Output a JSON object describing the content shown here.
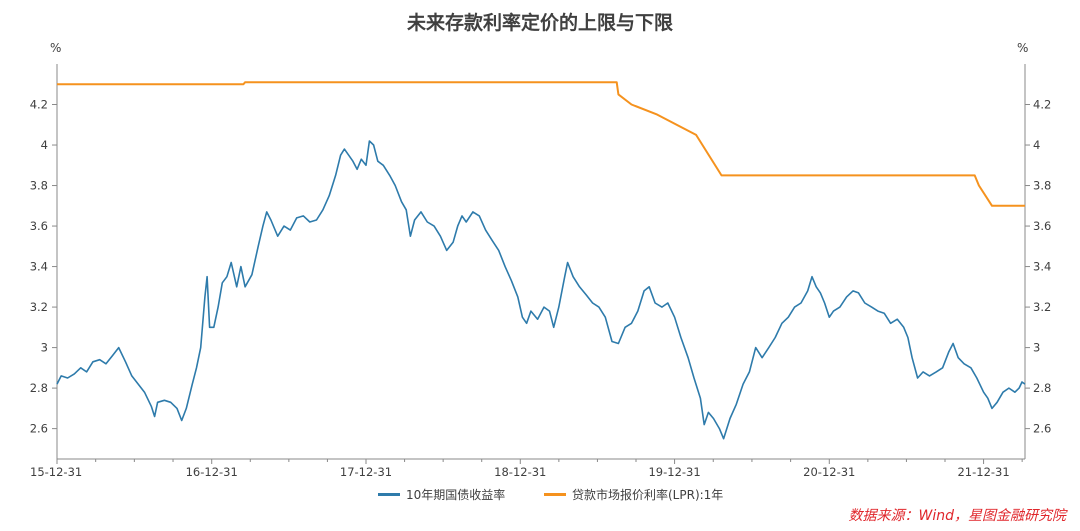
{
  "chart_data": {
    "type": "line",
    "title": "未来存款利率定价的上限与下限",
    "ylabel_left": "%",
    "ylabel_right": "%",
    "ylim": [
      2.45,
      4.4
    ],
    "yticks": [
      "2.6",
      "2.8",
      "3",
      "3.2",
      "3.4",
      "3.6",
      "3.8",
      "4",
      "4.2"
    ],
    "ytick_values": [
      2.6,
      2.8,
      3.0,
      3.2,
      3.4,
      3.6,
      3.8,
      4.0,
      4.2
    ],
    "xlim": [
      "2015-12-31",
      "2022-04-08"
    ],
    "xticks": [
      "15-12-31",
      "16-12-31",
      "17-12-31",
      "18-12-31",
      "19-12-31",
      "20-12-31",
      "21-12-31"
    ],
    "xtick_dates": [
      "2015-12-31",
      "2016-12-31",
      "2017-12-31",
      "2018-12-31",
      "2019-12-31",
      "2020-12-31",
      "2021-12-31"
    ],
    "series": [
      {
        "name": "10年期国债收益率",
        "color": "#2e7bab",
        "points": [
          [
            "2015-12-31",
            2.82
          ],
          [
            "2016-01-10",
            2.86
          ],
          [
            "2016-01-25",
            2.85
          ],
          [
            "2016-02-10",
            2.87
          ],
          [
            "2016-02-25",
            2.9
          ],
          [
            "2016-03-10",
            2.88
          ],
          [
            "2016-03-25",
            2.93
          ],
          [
            "2016-04-10",
            2.94
          ],
          [
            "2016-04-25",
            2.92
          ],
          [
            "2016-05-10",
            2.96
          ],
          [
            "2016-05-25",
            3.0
          ],
          [
            "2016-06-10",
            2.93
          ],
          [
            "2016-06-25",
            2.86
          ],
          [
            "2016-07-10",
            2.82
          ],
          [
            "2016-07-25",
            2.78
          ],
          [
            "2016-08-10",
            2.71
          ],
          [
            "2016-08-18",
            2.66
          ],
          [
            "2016-08-25",
            2.73
          ],
          [
            "2016-09-10",
            2.74
          ],
          [
            "2016-09-25",
            2.73
          ],
          [
            "2016-10-10",
            2.7
          ],
          [
            "2016-10-21",
            2.64
          ],
          [
            "2016-11-01",
            2.7
          ],
          [
            "2016-11-15",
            2.82
          ],
          [
            "2016-11-25",
            2.9
          ],
          [
            "2016-12-05",
            3.0
          ],
          [
            "2016-12-15",
            3.25
          ],
          [
            "2016-12-20",
            3.35
          ],
          [
            "2016-12-26",
            3.1
          ],
          [
            "2017-01-05",
            3.1
          ],
          [
            "2017-01-15",
            3.2
          ],
          [
            "2017-01-25",
            3.32
          ],
          [
            "2017-02-05",
            3.35
          ],
          [
            "2017-02-15",
            3.42
          ],
          [
            "2017-02-28",
            3.3
          ],
          [
            "2017-03-10",
            3.4
          ],
          [
            "2017-03-20",
            3.3
          ],
          [
            "2017-04-05",
            3.36
          ],
          [
            "2017-04-20",
            3.5
          ],
          [
            "2017-05-01",
            3.6
          ],
          [
            "2017-05-10",
            3.67
          ],
          [
            "2017-05-20",
            3.63
          ],
          [
            "2017-06-05",
            3.55
          ],
          [
            "2017-06-20",
            3.6
          ],
          [
            "2017-07-05",
            3.58
          ],
          [
            "2017-07-20",
            3.64
          ],
          [
            "2017-08-05",
            3.65
          ],
          [
            "2017-08-20",
            3.62
          ],
          [
            "2017-09-05",
            3.63
          ],
          [
            "2017-09-20",
            3.68
          ],
          [
            "2017-10-05",
            3.75
          ],
          [
            "2017-10-20",
            3.85
          ],
          [
            "2017-11-01",
            3.95
          ],
          [
            "2017-11-10",
            3.98
          ],
          [
            "2017-11-20",
            3.95
          ],
          [
            "2017-11-30",
            3.92
          ],
          [
            "2017-12-10",
            3.88
          ],
          [
            "2017-12-20",
            3.93
          ],
          [
            "2017-12-31",
            3.9
          ],
          [
            "2018-01-08",
            4.02
          ],
          [
            "2018-01-18",
            4.0
          ],
          [
            "2018-01-28",
            3.92
          ],
          [
            "2018-02-10",
            3.9
          ],
          [
            "2018-02-25",
            3.85
          ],
          [
            "2018-03-10",
            3.8
          ],
          [
            "2018-03-25",
            3.72
          ],
          [
            "2018-04-05",
            3.68
          ],
          [
            "2018-04-15",
            3.55
          ],
          [
            "2018-04-25",
            3.63
          ],
          [
            "2018-05-10",
            3.67
          ],
          [
            "2018-05-25",
            3.62
          ],
          [
            "2018-06-10",
            3.6
          ],
          [
            "2018-06-25",
            3.55
          ],
          [
            "2018-07-10",
            3.48
          ],
          [
            "2018-07-25",
            3.52
          ],
          [
            "2018-08-05",
            3.6
          ],
          [
            "2018-08-15",
            3.65
          ],
          [
            "2018-08-25",
            3.62
          ],
          [
            "2018-09-10",
            3.67
          ],
          [
            "2018-09-25",
            3.65
          ],
          [
            "2018-10-10",
            3.58
          ],
          [
            "2018-10-25",
            3.53
          ],
          [
            "2018-11-10",
            3.48
          ],
          [
            "2018-11-25",
            3.4
          ],
          [
            "2018-12-10",
            3.33
          ],
          [
            "2018-12-25",
            3.25
          ],
          [
            "2019-01-05",
            3.15
          ],
          [
            "2019-01-15",
            3.12
          ],
          [
            "2019-01-25",
            3.18
          ],
          [
            "2019-02-10",
            3.14
          ],
          [
            "2019-02-25",
            3.2
          ],
          [
            "2019-03-10",
            3.18
          ],
          [
            "2019-03-20",
            3.1
          ],
          [
            "2019-04-01",
            3.2
          ],
          [
            "2019-04-15",
            3.35
          ],
          [
            "2019-04-22",
            3.42
          ],
          [
            "2019-05-05",
            3.35
          ],
          [
            "2019-05-20",
            3.3
          ],
          [
            "2019-06-05",
            3.26
          ],
          [
            "2019-06-20",
            3.22
          ],
          [
            "2019-07-05",
            3.2
          ],
          [
            "2019-07-20",
            3.15
          ],
          [
            "2019-08-05",
            3.03
          ],
          [
            "2019-08-20",
            3.02
          ],
          [
            "2019-09-05",
            3.1
          ],
          [
            "2019-09-20",
            3.12
          ],
          [
            "2019-10-05",
            3.18
          ],
          [
            "2019-10-20",
            3.28
          ],
          [
            "2019-11-01",
            3.3
          ],
          [
            "2019-11-15",
            3.22
          ],
          [
            "2019-12-01",
            3.2
          ],
          [
            "2019-12-15",
            3.22
          ],
          [
            "2019-12-31",
            3.15
          ],
          [
            "2020-01-15",
            3.05
          ],
          [
            "2020-02-01",
            2.95
          ],
          [
            "2020-02-15",
            2.85
          ],
          [
            "2020-03-01",
            2.75
          ],
          [
            "2020-03-10",
            2.62
          ],
          [
            "2020-03-20",
            2.68
          ],
          [
            "2020-04-01",
            2.65
          ],
          [
            "2020-04-15",
            2.6
          ],
          [
            "2020-04-25",
            2.55
          ],
          [
            "2020-05-10",
            2.65
          ],
          [
            "2020-05-25",
            2.72
          ],
          [
            "2020-06-10",
            2.82
          ],
          [
            "2020-06-25",
            2.88
          ],
          [
            "2020-07-10",
            3.0
          ],
          [
            "2020-07-25",
            2.95
          ],
          [
            "2020-08-10",
            3.0
          ],
          [
            "2020-08-25",
            3.05
          ],
          [
            "2020-09-10",
            3.12
          ],
          [
            "2020-09-25",
            3.15
          ],
          [
            "2020-10-10",
            3.2
          ],
          [
            "2020-10-25",
            3.22
          ],
          [
            "2020-11-10",
            3.28
          ],
          [
            "2020-11-20",
            3.35
          ],
          [
            "2020-11-30",
            3.3
          ],
          [
            "2020-12-10",
            3.27
          ],
          [
            "2020-12-20",
            3.22
          ],
          [
            "2020-12-31",
            3.15
          ],
          [
            "2021-01-10",
            3.18
          ],
          [
            "2021-01-25",
            3.2
          ],
          [
            "2021-02-10",
            3.25
          ],
          [
            "2021-02-25",
            3.28
          ],
          [
            "2021-03-10",
            3.27
          ],
          [
            "2021-03-25",
            3.22
          ],
          [
            "2021-04-10",
            3.2
          ],
          [
            "2021-04-25",
            3.18
          ],
          [
            "2021-05-10",
            3.17
          ],
          [
            "2021-05-25",
            3.12
          ],
          [
            "2021-06-10",
            3.14
          ],
          [
            "2021-06-25",
            3.1
          ],
          [
            "2021-07-05",
            3.05
          ],
          [
            "2021-07-15",
            2.95
          ],
          [
            "2021-07-28",
            2.85
          ],
          [
            "2021-08-10",
            2.88
          ],
          [
            "2021-08-25",
            2.86
          ],
          [
            "2021-09-10",
            2.88
          ],
          [
            "2021-09-25",
            2.9
          ],
          [
            "2021-10-10",
            2.98
          ],
          [
            "2021-10-20",
            3.02
          ],
          [
            "2021-11-01",
            2.95
          ],
          [
            "2021-11-15",
            2.92
          ],
          [
            "2021-12-01",
            2.9
          ],
          [
            "2021-12-15",
            2.85
          ],
          [
            "2021-12-31",
            2.78
          ],
          [
            "2022-01-10",
            2.75
          ],
          [
            "2022-01-20",
            2.7
          ],
          [
            "2022-02-01",
            2.73
          ],
          [
            "2022-02-15",
            2.78
          ],
          [
            "2022-03-01",
            2.8
          ],
          [
            "2022-03-15",
            2.78
          ],
          [
            "2022-03-25",
            2.8
          ],
          [
            "2022-04-01",
            2.83
          ],
          [
            "2022-04-08",
            2.82
          ]
        ]
      },
      {
        "name": "贷款市场报价利率(LPR):1年",
        "color": "#f5921e",
        "points": [
          [
            "2015-12-31",
            4.3
          ],
          [
            "2017-03-16",
            4.3
          ],
          [
            "2017-03-20",
            4.31
          ],
          [
            "2019-08-16",
            4.31
          ],
          [
            "2019-08-20",
            4.25
          ],
          [
            "2019-09-20",
            4.2
          ],
          [
            "2019-11-20",
            4.15
          ],
          [
            "2020-02-20",
            4.05
          ],
          [
            "2020-04-20",
            3.85
          ],
          [
            "2021-12-10",
            3.85
          ],
          [
            "2021-12-20",
            3.8
          ],
          [
            "2022-01-20",
            3.7
          ],
          [
            "2022-04-08",
            3.7
          ]
        ]
      }
    ]
  },
  "legend": {
    "items": [
      {
        "label": "10年期国债收益率",
        "color": "#2e7bab"
      },
      {
        "label": "贷款市场报价利率(LPR):1年",
        "color": "#f5921e"
      }
    ]
  },
  "source_note": "数据来源：Wind，星图金融研究院"
}
